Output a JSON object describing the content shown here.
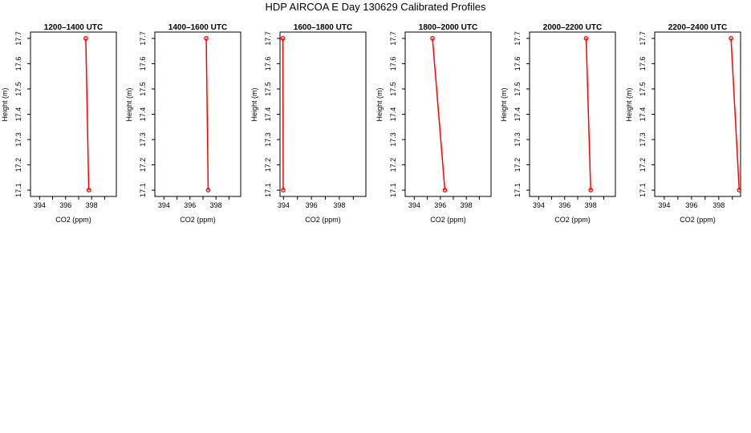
{
  "figure": {
    "title": "HDP AIRCOA E  Day 130629  Calibrated Profiles"
  },
  "chart_data": [
    {
      "type": "line",
      "title": "1200–1400 UTC",
      "xlabel": "CO2 (ppm)",
      "ylabel": "Height (m)",
      "xlim": [
        393.3,
        399.9
      ],
      "ylim": [
        17.075,
        17.725
      ],
      "xticks": [
        394,
        396,
        398
      ],
      "yticks": [
        17.1,
        17.2,
        17.3,
        17.4,
        17.5,
        17.6,
        17.7
      ],
      "series": [
        {
          "x": [
            397.55,
            397.78
          ],
          "y": [
            17.7,
            17.1
          ],
          "color": "#ff0000"
        }
      ]
    },
    {
      "type": "line",
      "title": "1400–1600 UTC",
      "xlabel": "CO2 (ppm)",
      "ylabel": "Height (m)",
      "xlim": [
        393.3,
        399.9
      ],
      "ylim": [
        17.075,
        17.725
      ],
      "xticks": [
        394,
        396,
        398
      ],
      "yticks": [
        17.1,
        17.2,
        17.3,
        17.4,
        17.5,
        17.6,
        17.7
      ],
      "series": [
        {
          "x": [
            397.25,
            397.4
          ],
          "y": [
            17.7,
            17.1
          ],
          "color": "#ff0000"
        }
      ]
    },
    {
      "type": "line",
      "title": "1600–1800 UTC",
      "xlabel": "CO2 (ppm)",
      "ylabel": "Height (m)",
      "xlim": [
        393.75,
        399.9
      ],
      "ylim": [
        17.075,
        17.725
      ],
      "xticks": [
        394,
        396,
        398
      ],
      "yticks": [
        17.1,
        17.2,
        17.3,
        17.4,
        17.5,
        17.6,
        17.7
      ],
      "series": [
        {
          "x": [
            393.95,
            393.98
          ],
          "y": [
            17.7,
            17.1
          ],
          "color": "#ff0000"
        }
      ]
    },
    {
      "type": "line",
      "title": "1800–2000 UTC",
      "xlabel": "CO2 (ppm)",
      "ylabel": "Height (m)",
      "xlim": [
        393.3,
        399.9
      ],
      "ylim": [
        17.075,
        17.725
      ],
      "xticks": [
        394,
        396,
        398
      ],
      "yticks": [
        17.1,
        17.2,
        17.3,
        17.4,
        17.5,
        17.6,
        17.7
      ],
      "series": [
        {
          "x": [
            395.4,
            396.35
          ],
          "y": [
            17.7,
            17.1
          ],
          "color": "#ff0000"
        }
      ]
    },
    {
      "type": "line",
      "title": "2000–2200 UTC",
      "xlabel": "CO2 (ppm)",
      "ylabel": "Height (m)",
      "xlim": [
        393.3,
        399.9
      ],
      "ylim": [
        17.075,
        17.725
      ],
      "xticks": [
        394,
        396,
        398
      ],
      "yticks": [
        17.1,
        17.2,
        17.3,
        17.4,
        17.5,
        17.6,
        17.7
      ],
      "series": [
        {
          "x": [
            397.65,
            398.0
          ],
          "y": [
            17.7,
            17.1
          ],
          "color": "#ff0000"
        }
      ]
    },
    {
      "type": "line",
      "title": "2200–2400 UTC",
      "xlabel": "CO2 (ppm)",
      "ylabel": "Height (m)",
      "xlim": [
        393.3,
        399.6
      ],
      "ylim": [
        17.075,
        17.725
      ],
      "xticks": [
        394,
        396,
        398
      ],
      "yticks": [
        17.1,
        17.2,
        17.3,
        17.4,
        17.5,
        17.6,
        17.7
      ],
      "series": [
        {
          "x": [
            398.9,
            399.5
          ],
          "y": [
            17.7,
            17.1
          ],
          "color": "#ff0000"
        }
      ]
    }
  ]
}
